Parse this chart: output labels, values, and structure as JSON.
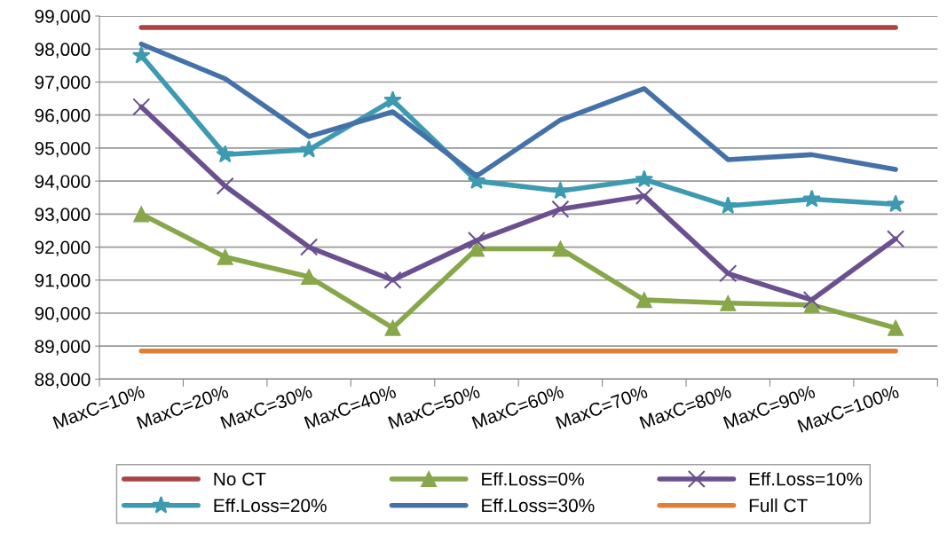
{
  "chart_data": {
    "type": "line",
    "categories": [
      "MaxC=10%",
      "MaxC=20%",
      "MaxC=30%",
      "MaxC=40%",
      "MaxC=50%",
      "MaxC=60%",
      "MaxC=70%",
      "MaxC=80%",
      "MaxC=90%",
      "MaxC=100%"
    ],
    "ylim": [
      88000,
      99000
    ],
    "yticks": [
      {
        "value": 88000,
        "label": "88,000"
      },
      {
        "value": 89000,
        "label": "89,000"
      },
      {
        "value": 90000,
        "label": "90,000"
      },
      {
        "value": 91000,
        "label": "91,000"
      },
      {
        "value": 92000,
        "label": "92,000"
      },
      {
        "value": 93000,
        "label": "93,000"
      },
      {
        "value": 94000,
        "label": "94,000"
      },
      {
        "value": 95000,
        "label": "95,000"
      },
      {
        "value": 96000,
        "label": "96,000"
      },
      {
        "value": 97000,
        "label": "97,000"
      },
      {
        "value": 98000,
        "label": "98,000"
      },
      {
        "value": 99000,
        "label": "99,000"
      }
    ],
    "grid": "y",
    "legend": "bottom",
    "series": [
      {
        "name": "No CT",
        "color": "#a94442",
        "marker": "none",
        "values": [
          98650,
          98650,
          98650,
          98650,
          98650,
          98650,
          98650,
          98650,
          98650,
          98650
        ]
      },
      {
        "name": "Eff.Loss=0%",
        "color": "#88a74a",
        "marker": "triangle",
        "values": [
          93000,
          91700,
          91100,
          89550,
          91950,
          91950,
          90400,
          90300,
          90250,
          89550
        ]
      },
      {
        "name": "Eff.Loss=10%",
        "color": "#6b5090",
        "marker": "cross",
        "values": [
          96250,
          93850,
          92000,
          91000,
          92200,
          93150,
          93550,
          91200,
          90400,
          92250
        ]
      },
      {
        "name": "Eff.Loss=20%",
        "color": "#3d9ab0",
        "marker": "star",
        "values": [
          97800,
          94800,
          94950,
          96450,
          94000,
          93700,
          94050,
          93250,
          93450,
          93300
        ]
      },
      {
        "name": "Eff.Loss=30%",
        "color": "#4472a8",
        "marker": "none",
        "values": [
          98150,
          97100,
          95350,
          96100,
          94150,
          95850,
          96800,
          94650,
          94800,
          94350
        ]
      },
      {
        "name": "Full CT",
        "color": "#e07f35",
        "marker": "none",
        "values": [
          88850,
          88850,
          88850,
          88850,
          88850,
          88850,
          88850,
          88850,
          88850,
          88850
        ]
      }
    ]
  }
}
